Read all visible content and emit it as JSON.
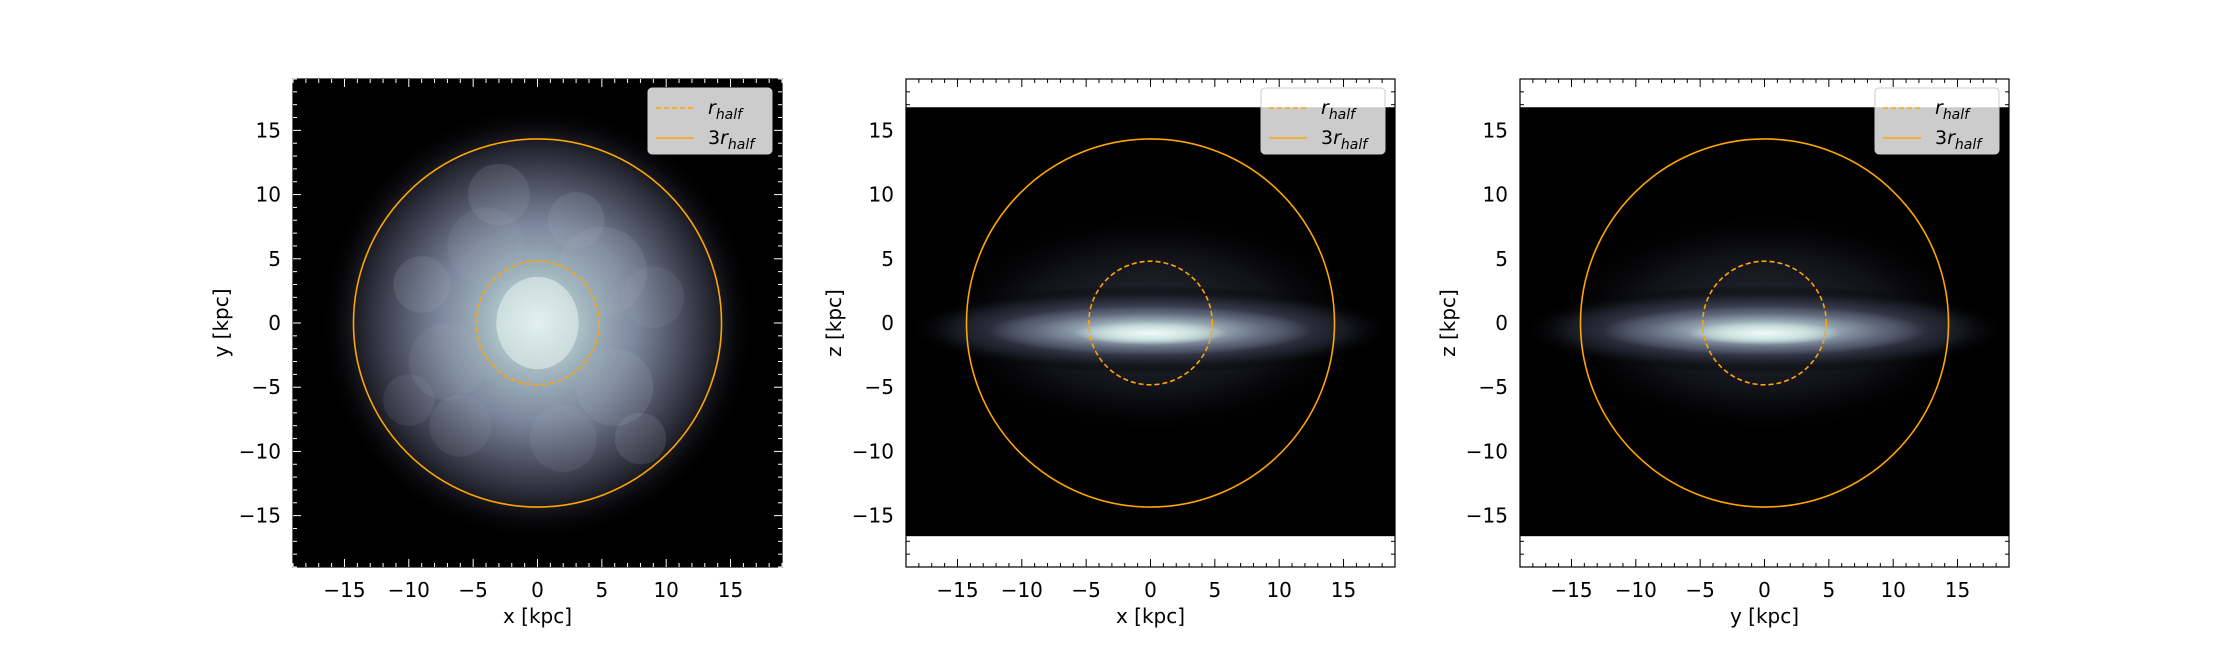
{
  "chart_data": [
    {
      "type": "heatmap",
      "panel": "face-on",
      "xlabel": "x [kpc]",
      "ylabel": "y [kpc]",
      "xlim": [
        -19,
        19
      ],
      "ylim": [
        -19,
        19
      ],
      "ticks": [
        -15,
        -10,
        -5,
        0,
        5,
        10,
        15
      ],
      "tick_labels": [
        "−15",
        "−10",
        "−5",
        "0",
        "5",
        "10",
        "15"
      ],
      "image_extent_y": [
        -19,
        19
      ],
      "colormap": "bone",
      "grid": false,
      "legend_loc": "upper right",
      "circles": [
        {
          "label_base": "r",
          "label_sub": "half",
          "radius": 4.8,
          "style": "dashed",
          "color": "#ffa500"
        },
        {
          "label_base": "3r",
          "label_sub": "half",
          "radius": 14.3,
          "style": "solid",
          "color": "#ffa500"
        }
      ]
    },
    {
      "type": "heatmap",
      "panel": "edge-on-xz",
      "xlabel": "x [kpc]",
      "ylabel": "z [kpc]",
      "xlim": [
        -19,
        19
      ],
      "ylim": [
        -19,
        19
      ],
      "ticks": [
        -15,
        -10,
        -5,
        0,
        5,
        10,
        15
      ],
      "tick_labels": [
        "−15",
        "−10",
        "−5",
        "0",
        "5",
        "10",
        "15"
      ],
      "image_extent_y": [
        -16.6,
        16.8
      ],
      "colormap": "bone",
      "grid": false,
      "legend_loc": "upper right",
      "circles": [
        {
          "label_base": "r",
          "label_sub": "half",
          "radius": 4.8,
          "style": "dashed",
          "color": "#ffa500"
        },
        {
          "label_base": "3r",
          "label_sub": "half",
          "radius": 14.3,
          "style": "solid",
          "color": "#ffa500"
        }
      ]
    },
    {
      "type": "heatmap",
      "panel": "edge-on-yz",
      "xlabel": "y [kpc]",
      "ylabel": "z [kpc]",
      "xlim": [
        -19,
        19
      ],
      "ylim": [
        -19,
        19
      ],
      "ticks": [
        -15,
        -10,
        -5,
        0,
        5,
        10,
        15
      ],
      "tick_labels": [
        "−15",
        "−10",
        "−5",
        "0",
        "5",
        "10",
        "15"
      ],
      "image_extent_y": [
        -16.6,
        16.8
      ],
      "colormap": "bone",
      "grid": false,
      "legend_loc": "upper right",
      "circles": [
        {
          "label_base": "r",
          "label_sub": "half",
          "radius": 4.8,
          "style": "dashed",
          "color": "#ffa500"
        },
        {
          "label_base": "3r",
          "label_sub": "half",
          "radius": 14.3,
          "style": "solid",
          "color": "#ffa500"
        }
      ]
    }
  ]
}
